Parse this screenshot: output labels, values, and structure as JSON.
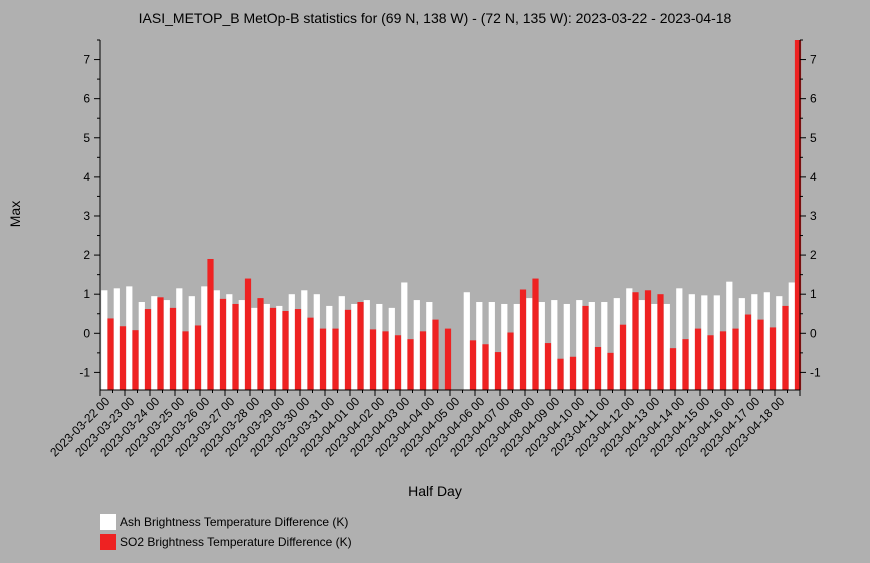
{
  "chart_data": {
    "type": "bar",
    "title": "IASI_METOP_B MetOp-B statistics for (69 N, 138 W) - (72 N, 135 W): 2023-03-22 - 2023-04-18",
    "xlabel": "Half Day",
    "ylabel": "Max",
    "ylim": [
      -1.45,
      7.5
    ],
    "yticks": [
      -1,
      0,
      1,
      2,
      3,
      4,
      5,
      6,
      7
    ],
    "grid": false,
    "legend_position": "bottom-left",
    "x_tick_labels": [
      "2023-03-22 00",
      "2023-03-23 00",
      "2023-03-24 00",
      "2023-03-25 00",
      "2023-03-26 00",
      "2023-03-27 00",
      "2023-03-28 00",
      "2023-03-29 00",
      "2023-03-30 00",
      "2023-03-31 00",
      "2023-04-01 00",
      "2023-04-02 00",
      "2023-04-03 00",
      "2023-04-04 00",
      "2023-04-05 00",
      "2023-04-06 00",
      "2023-04-07 00",
      "2023-04-08 00",
      "2023-04-09 00",
      "2023-04-10 00",
      "2023-04-11 00",
      "2023-04-12 00",
      "2023-04-13 00",
      "2023-04-14 00",
      "2023-04-15 00",
      "2023-04-16 00",
      "2023-04-17 00",
      "2023-04-18 00"
    ],
    "series": [
      {
        "name": "Ash Brightness Temperature Difference (K)",
        "color": "#ffffff",
        "values": [
          1.1,
          1.15,
          1.2,
          0.8,
          0.95,
          0.85,
          1.15,
          0.95,
          1.2,
          1.1,
          1.0,
          0.85,
          0.65,
          0.75,
          0.7,
          1.0,
          1.1,
          1.0,
          0.7,
          0.95,
          0.75,
          0.85,
          0.75,
          0.65,
          1.3,
          0.85,
          0.8,
          null,
          null,
          1.05,
          0.8,
          0.8,
          0.75,
          0.75,
          0.9,
          0.8,
          0.85,
          0.75,
          0.85,
          0.8,
          0.8,
          0.9,
          1.15,
          0.85,
          0.75,
          0.75,
          1.15,
          1.0,
          0.97,
          0.97,
          1.32,
          0.9,
          1.0,
          1.05,
          0.95,
          1.3
        ]
      },
      {
        "name": "SO2 Brightness Temperature Difference (K)",
        "color": "#ee2222",
        "values": [
          0.38,
          0.18,
          0.08,
          0.62,
          0.92,
          0.65,
          0.05,
          0.2,
          1.9,
          0.88,
          0.75,
          1.4,
          0.9,
          0.65,
          0.57,
          0.62,
          0.4,
          0.12,
          0.12,
          0.6,
          0.8,
          0.1,
          0.05,
          -0.05,
          -0.15,
          0.05,
          0.35,
          0.12,
          null,
          -0.18,
          -0.28,
          -0.48,
          0.02,
          1.12,
          1.4,
          -0.25,
          -0.65,
          -0.6,
          0.7,
          -0.35,
          -0.5,
          0.22,
          1.05,
          1.1,
          1.0,
          -0.38,
          -0.15,
          0.12,
          -0.05,
          0.05,
          0.12,
          0.48,
          0.35,
          0.15,
          0.7,
          7.5
        ]
      }
    ]
  }
}
